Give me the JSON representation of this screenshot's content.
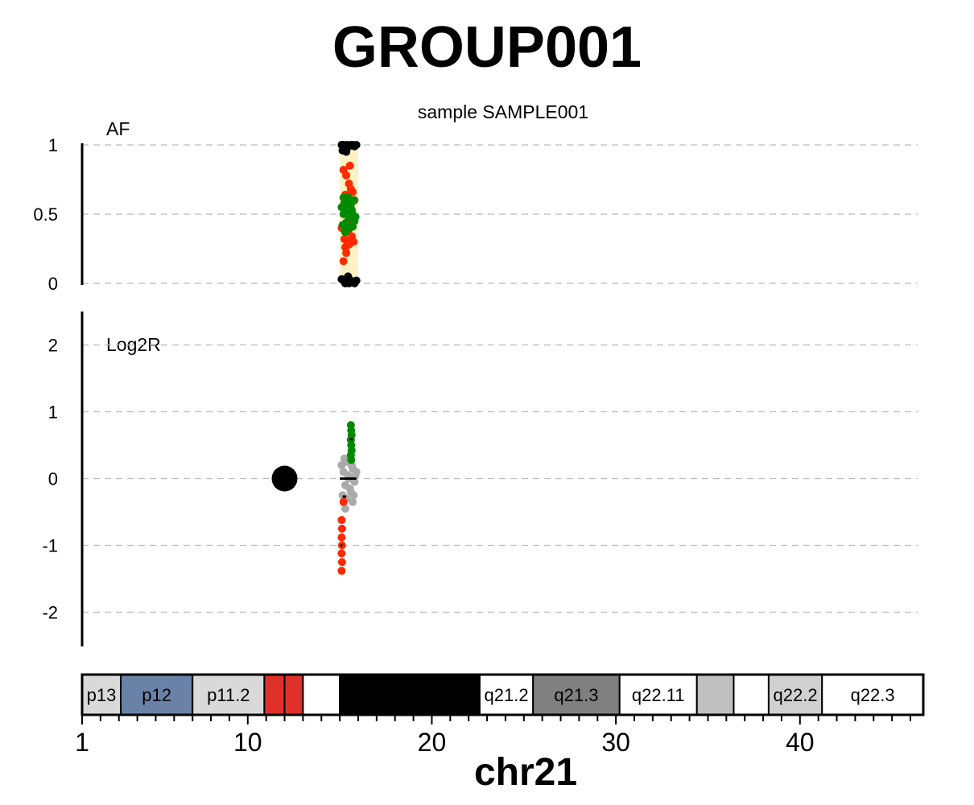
{
  "title": "GROUP001",
  "subtitle": "sample SAMPLE001",
  "chart_data": [
    {
      "type": "scatter",
      "panel": "AF",
      "ylabel": "AF",
      "ylim": [
        0,
        1
      ],
      "y_ticks": [
        "0",
        "0.5",
        "1"
      ],
      "y_tick_values": [
        0,
        0.5,
        1
      ],
      "grid": true,
      "region_x": [
        15.0,
        16.0
      ],
      "series": [
        {
          "color": "#000000",
          "points": [
            [
              15.1,
              1.0
            ],
            [
              15.2,
              1.0
            ],
            [
              15.3,
              0.99
            ],
            [
              15.4,
              1.0
            ],
            [
              15.5,
              0.99
            ],
            [
              15.6,
              1.0
            ],
            [
              15.7,
              1.0
            ],
            [
              15.8,
              0.99
            ],
            [
              15.9,
              1.0
            ],
            [
              15.15,
              0.96
            ],
            [
              15.35,
              0.95
            ],
            [
              15.1,
              0.03
            ],
            [
              15.2,
              0.02
            ],
            [
              15.3,
              0.0
            ],
            [
              15.4,
              0.01
            ],
            [
              15.5,
              0.0
            ],
            [
              15.6,
              0.02
            ],
            [
              15.7,
              0.01
            ],
            [
              15.8,
              0.0
            ],
            [
              15.9,
              0.02
            ],
            [
              15.45,
              0.05
            ]
          ]
        },
        {
          "color": "#ff2a00",
          "points": [
            [
              15.2,
              0.82
            ],
            [
              15.35,
              0.78
            ],
            [
              15.5,
              0.72
            ],
            [
              15.6,
              0.68
            ],
            [
              15.7,
              0.66
            ],
            [
              15.3,
              0.64
            ],
            [
              15.4,
              0.62
            ],
            [
              15.55,
              0.85
            ],
            [
              15.25,
              0.32
            ],
            [
              15.4,
              0.3
            ],
            [
              15.5,
              0.28
            ],
            [
              15.65,
              0.34
            ],
            [
              15.3,
              0.26
            ],
            [
              15.2,
              0.16
            ],
            [
              15.45,
              0.38
            ],
            [
              15.75,
              0.3
            ],
            [
              15.1,
              0.4
            ],
            [
              15.8,
              0.6
            ],
            [
              15.35,
              0.22
            ],
            [
              15.6,
              0.42
            ]
          ]
        },
        {
          "color": "#008a00",
          "points": [
            [
              15.1,
              0.55
            ],
            [
              15.2,
              0.5
            ],
            [
              15.3,
              0.6
            ],
            [
              15.4,
              0.52
            ],
            [
              15.5,
              0.47
            ],
            [
              15.6,
              0.57
            ],
            [
              15.7,
              0.5
            ],
            [
              15.8,
              0.45
            ],
            [
              15.15,
              0.42
            ],
            [
              15.25,
              0.58
            ],
            [
              15.35,
              0.44
            ],
            [
              15.45,
              0.62
            ],
            [
              15.55,
              0.4
            ],
            [
              15.65,
              0.53
            ],
            [
              15.75,
              0.6
            ],
            [
              15.85,
              0.48
            ],
            [
              15.3,
              0.37
            ],
            [
              15.5,
              0.54
            ],
            [
              15.7,
              0.41
            ],
            [
              15.2,
              0.62
            ]
          ]
        }
      ]
    },
    {
      "type": "scatter",
      "panel": "Log2R",
      "ylabel": "Log2R",
      "ylim": [
        -2.5,
        2.5
      ],
      "y_ticks": [
        "-2",
        "-1",
        "0",
        "1",
        "2"
      ],
      "y_tick_values": [
        -2,
        -1,
        0,
        1,
        2
      ],
      "grid": true,
      "series": [
        {
          "color": "#aaaaaa",
          "points": [
            [
              15.1,
              0.2
            ],
            [
              15.2,
              0.1
            ],
            [
              15.3,
              -0.1
            ],
            [
              15.4,
              0.25
            ],
            [
              15.5,
              0.0
            ],
            [
              15.6,
              -0.2
            ],
            [
              15.7,
              0.15
            ],
            [
              15.8,
              -0.05
            ],
            [
              15.9,
              0.1
            ],
            [
              15.15,
              -0.25
            ],
            [
              15.25,
              0.3
            ],
            [
              15.35,
              -0.3
            ],
            [
              15.45,
              0.05
            ],
            [
              15.55,
              -0.15
            ],
            [
              15.65,
              0.2
            ],
            [
              15.75,
              -0.25
            ],
            [
              15.85,
              0.05
            ],
            [
              15.3,
              -0.45
            ],
            [
              15.5,
              0.3
            ],
            [
              15.7,
              -0.35
            ]
          ]
        },
        {
          "color": "#008a00",
          "points": [
            [
              15.6,
              0.8
            ],
            [
              15.62,
              0.72
            ],
            [
              15.64,
              0.65
            ],
            [
              15.6,
              0.58
            ],
            [
              15.62,
              0.5
            ],
            [
              15.64,
              0.42
            ],
            [
              15.6,
              0.35
            ],
            [
              15.62,
              0.28
            ]
          ]
        },
        {
          "color": "#ff2a00",
          "points": [
            [
              15.2,
              -0.35
            ],
            [
              15.1,
              -0.62
            ],
            [
              15.12,
              -0.75
            ],
            [
              15.1,
              -0.88
            ],
            [
              15.12,
              -1.0
            ],
            [
              15.1,
              -1.12
            ],
            [
              15.12,
              -1.25
            ],
            [
              15.1,
              -1.38
            ]
          ]
        },
        {
          "color": "#000000",
          "points": [
            [
              12.0,
              0.0
            ]
          ],
          "marker": "large-circle"
        }
      ],
      "segments": [
        {
          "x": [
            15.0,
            15.9
          ],
          "y": 0.0
        },
        {
          "x": [
            15.55,
            15.7
          ],
          "y": 0.59
        },
        {
          "x": [
            15.05,
            15.15
          ],
          "y": -1.0
        },
        {
          "x": [
            15.15,
            15.35
          ],
          "y": -0.27
        }
      ]
    }
  ],
  "ideogram": {
    "bands": [
      {
        "label": "p13",
        "start": 1.0,
        "end": 3.1,
        "color": "#d9d9d9"
      },
      {
        "label": "p12",
        "start": 3.1,
        "end": 7.0,
        "color": "#6a82a8"
      },
      {
        "label": "p11.2",
        "start": 7.0,
        "end": 10.9,
        "color": "#d9d9d9"
      },
      {
        "label": "",
        "start": 10.9,
        "end": 12.0,
        "color": "#e0302a"
      },
      {
        "label": "",
        "start": 12.0,
        "end": 13.0,
        "color": "#e0302a"
      },
      {
        "label": "",
        "start": 13.0,
        "end": 15.0,
        "color": "#ffffff"
      },
      {
        "label": "",
        "start": 15.0,
        "end": 22.6,
        "color": "#000000"
      },
      {
        "label": "q21.2",
        "start": 22.6,
        "end": 25.5,
        "color": "#ffffff"
      },
      {
        "label": "q21.3",
        "start": 25.5,
        "end": 30.2,
        "color": "#808080"
      },
      {
        "label": "q22.11",
        "start": 30.2,
        "end": 34.4,
        "color": "#ffffff"
      },
      {
        "label": "",
        "start": 34.4,
        "end": 36.4,
        "color": "#c0c0c0"
      },
      {
        "label": "",
        "start": 36.4,
        "end": 38.3,
        "color": "#ffffff"
      },
      {
        "label": "q22.2",
        "start": 38.3,
        "end": 41.2,
        "color": "#d0d0d0"
      },
      {
        "label": "q22.3",
        "start": 41.2,
        "end": 46.7,
        "color": "#ffffff"
      }
    ],
    "x_ticks": [
      "1",
      "10",
      "20",
      "30",
      "40"
    ],
    "x_tick_values": [
      1,
      10,
      20,
      30,
      40
    ],
    "xlim": [
      1,
      46.7
    ],
    "xlabel": "chr21"
  }
}
